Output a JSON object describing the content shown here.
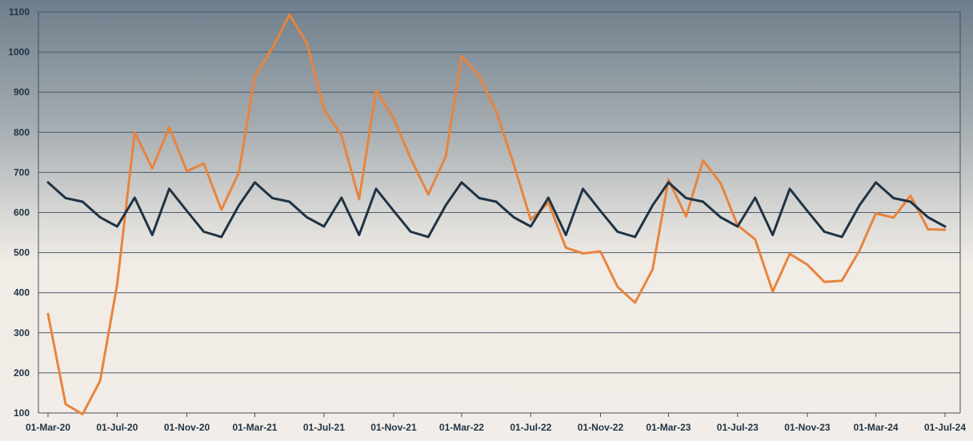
{
  "chart_data": {
    "type": "line",
    "title": "",
    "xlabel": "",
    "ylabel": "",
    "ylim": [
      100,
      1100
    ],
    "yticks": [
      100,
      200,
      300,
      400,
      500,
      600,
      700,
      800,
      900,
      1000,
      1100
    ],
    "xticks": [
      {
        "label": "01-Mar-20",
        "date": "2020-03-01"
      },
      {
        "label": "01-Jul-20",
        "date": "2020-07-01"
      },
      {
        "label": "01-Nov-20",
        "date": "2020-11-01"
      },
      {
        "label": "01-Mar-21",
        "date": "2021-03-01"
      },
      {
        "label": "01-Jul-21",
        "date": "2021-07-01"
      },
      {
        "label": "01-Nov-21",
        "date": "2021-11-01"
      },
      {
        "label": "01-Mar-22",
        "date": "2022-03-01"
      },
      {
        "label": "01-Jul-22",
        "date": "2022-07-01"
      },
      {
        "label": "01-Nov-22",
        "date": "2022-11-01"
      },
      {
        "label": "01-Mar-23",
        "date": "2023-03-01"
      },
      {
        "label": "01-Jul-23",
        "date": "2023-07-01"
      },
      {
        "label": "01-Nov-23",
        "date": "2023-11-01"
      },
      {
        "label": "01-Mar-24",
        "date": "2024-03-01"
      },
      {
        "label": "01-Jul-24",
        "date": "2024-07-01"
      }
    ],
    "x": [
      "2020-03-01",
      "2020-04-01",
      "2020-05-01",
      "2020-06-01",
      "2020-07-01",
      "2020-08-01",
      "2020-09-01",
      "2020-10-01",
      "2020-11-01",
      "2020-12-01",
      "2021-01-01",
      "2021-02-01",
      "2021-03-01",
      "2021-04-01",
      "2021-05-01",
      "2021-06-01",
      "2021-07-01",
      "2021-08-01",
      "2021-09-01",
      "2021-10-01",
      "2021-11-01",
      "2021-12-01",
      "2022-01-01",
      "2022-02-01",
      "2022-03-01",
      "2022-04-01",
      "2022-05-01",
      "2022-06-01",
      "2022-07-01",
      "2022-08-01",
      "2022-09-01",
      "2022-10-01",
      "2022-11-01",
      "2022-12-01",
      "2023-01-01",
      "2023-02-01",
      "2023-03-01",
      "2023-04-01",
      "2023-05-01",
      "2023-06-01",
      "2023-07-01",
      "2023-08-01",
      "2023-09-01",
      "2023-10-01",
      "2023-11-01",
      "2023-12-01",
      "2024-01-01",
      "2024-02-01",
      "2024-03-01",
      "2024-04-01",
      "2024-05-01",
      "2024-06-01",
      "2024-07-01"
    ],
    "series": [
      {
        "color": "#e8843c",
        "values": [
          347,
          122,
          97,
          180,
          420,
          800,
          710,
          813,
          703,
          722,
          607,
          700,
          940,
          1010,
          1093,
          1022,
          857,
          792,
          633,
          905,
          835,
          735,
          645,
          740,
          990,
          940,
          852,
          720,
          582,
          625,
          512,
          498,
          503,
          415,
          375,
          458,
          682,
          590,
          730,
          673,
          568,
          533,
          403,
          497,
          470,
          427,
          430,
          505,
          598,
          587,
          642,
          558,
          557
        ]
      },
      {
        "color": "#1f3344",
        "values": [
          675,
          636,
          627,
          588,
          565,
          637,
          544,
          659,
          604,
          552,
          539,
          618,
          675,
          636,
          627,
          588,
          565,
          637,
          544,
          659,
          604,
          552,
          539,
          618,
          675,
          636,
          627,
          588,
          565,
          637,
          544,
          659,
          604,
          552,
          539,
          618,
          675,
          636,
          627,
          588,
          565,
          637,
          544,
          659,
          604,
          552,
          539,
          618,
          675,
          636,
          627,
          588,
          565
        ]
      }
    ],
    "grid": true,
    "legend": "none"
  }
}
